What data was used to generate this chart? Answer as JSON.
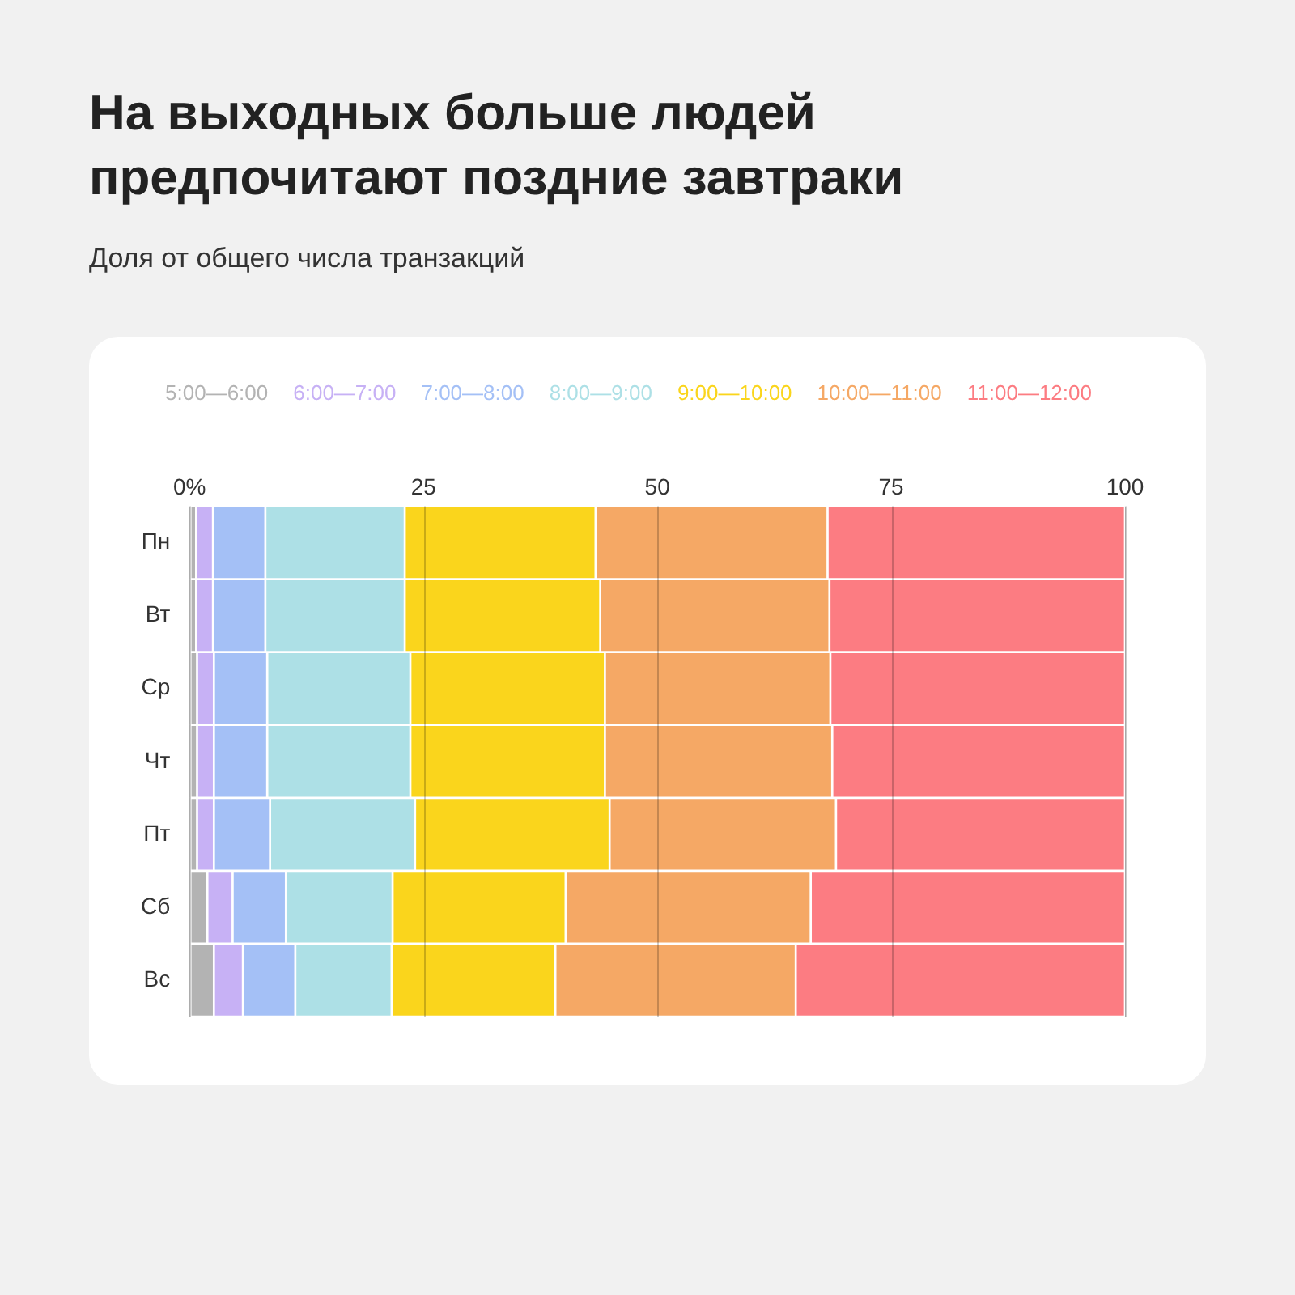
{
  "chart_data": {
    "type": "bar",
    "orientation": "horizontal",
    "stacked": true,
    "title": "На выходных больше людей предпочитают поздние завтраки",
    "subtitle": "Доля от общего числа транзакций",
    "categories": [
      "Пн",
      "Вт",
      "Ср",
      "Чт",
      "Пт",
      "Сб",
      "Вс"
    ],
    "series": [
      {
        "name": "5:00—6:00",
        "color": "#b3b3b3",
        "values": [
          0.7,
          0.7,
          0.8,
          0.8,
          0.8,
          1.9,
          2.6
        ]
      },
      {
        "name": "6:00—7:00",
        "color": "#c7b1f5",
        "values": [
          1.8,
          1.8,
          1.8,
          1.8,
          1.8,
          2.7,
          3.1
        ]
      },
      {
        "name": "7:00—8:00",
        "color": "#a4c0f6",
        "values": [
          5.6,
          5.6,
          5.7,
          5.7,
          6.0,
          5.7,
          5.6
        ]
      },
      {
        "name": "8:00—9:00",
        "color": "#ade0e6",
        "values": [
          14.9,
          14.9,
          15.3,
          15.3,
          15.5,
          11.4,
          10.3
        ]
      },
      {
        "name": "9:00—10:00",
        "color": "#fad51c",
        "values": [
          20.4,
          20.9,
          20.8,
          20.8,
          20.8,
          18.5,
          17.5
        ]
      },
      {
        "name": "10:00—11:00",
        "color": "#f5a865",
        "values": [
          24.8,
          24.5,
          24.1,
          24.3,
          24.2,
          26.2,
          25.7
        ]
      },
      {
        "name": "11:00—12:00",
        "color": "#fc7c82",
        "values": [
          31.8,
          31.6,
          31.5,
          31.3,
          30.9,
          33.6,
          35.2
        ]
      }
    ],
    "xlim": [
      0,
      100
    ],
    "xticks": [
      {
        "value": 0,
        "label": "0%"
      },
      25,
      50,
      75,
      100
    ],
    "grid": "x",
    "legend": "top"
  }
}
